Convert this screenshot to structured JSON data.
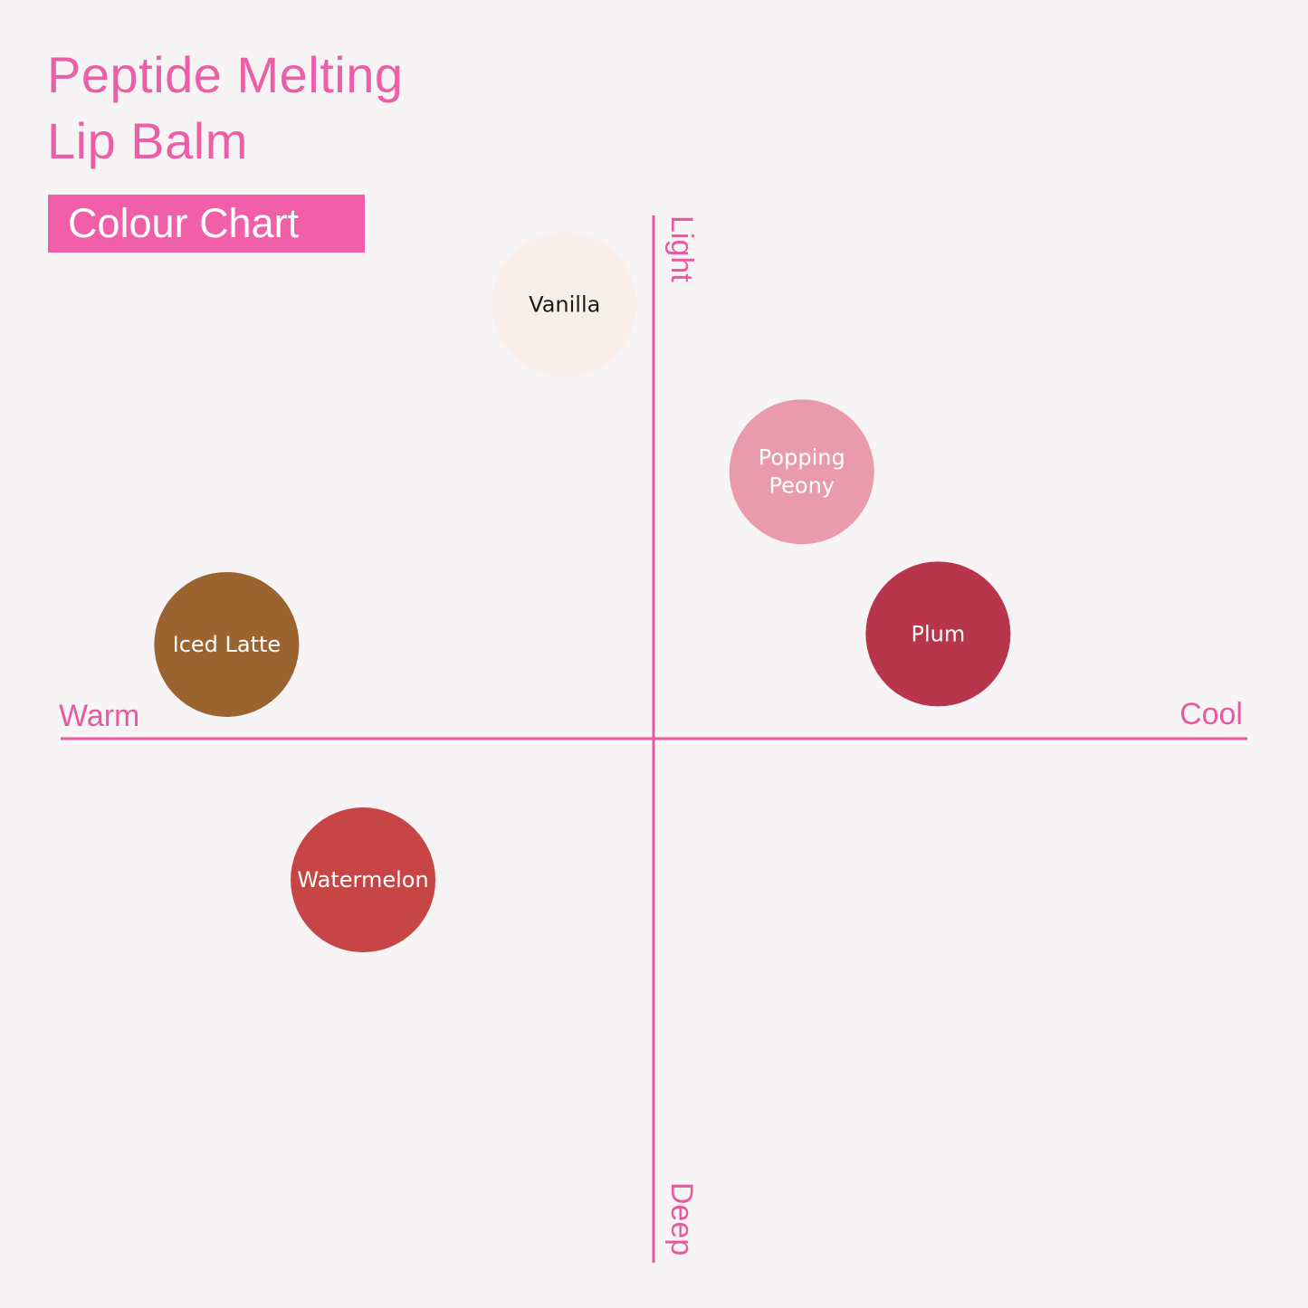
{
  "header": {
    "title_line1": "Peptide Melting",
    "title_line2": "Lip Balm",
    "badge": "Colour Chart"
  },
  "colors": {
    "accent": "#ec5fa6",
    "background": "#f7f4f5"
  },
  "chart_data": {
    "type": "scatter",
    "title": "Colour Chart",
    "x_axis": {
      "negative_label": "Warm",
      "positive_label": "Cool"
    },
    "y_axis": {
      "positive_label": "Light",
      "negative_label": "Deep"
    },
    "xlim": [
      -1,
      1
    ],
    "ylim": [
      -1,
      1
    ],
    "grid": false,
    "points": [
      {
        "label": "Vanilla",
        "lines": [
          "Vanilla"
        ],
        "x": -0.15,
        "y": 0.83,
        "color": "#f8efeb",
        "text_color": "#1a1a1a"
      },
      {
        "label": "Popping Peony",
        "lines": [
          "Popping",
          "Peony"
        ],
        "x": 0.25,
        "y": 0.51,
        "color": "#e99bab",
        "text_color": "#ffffff"
      },
      {
        "label": "Plum",
        "lines": [
          "Plum"
        ],
        "x": 0.48,
        "y": 0.2,
        "color": "#b8364c",
        "text_color": "#ffffff"
      },
      {
        "label": "Iced Latte",
        "lines": [
          "Iced Latte"
        ],
        "x": -0.72,
        "y": 0.18,
        "color": "#9a6330",
        "text_color": "#ffffff"
      },
      {
        "label": "Watermelon",
        "lines": [
          "Watermelon"
        ],
        "x": -0.49,
        "y": -0.27,
        "color": "#c84545",
        "text_color": "#ffffff"
      }
    ]
  }
}
